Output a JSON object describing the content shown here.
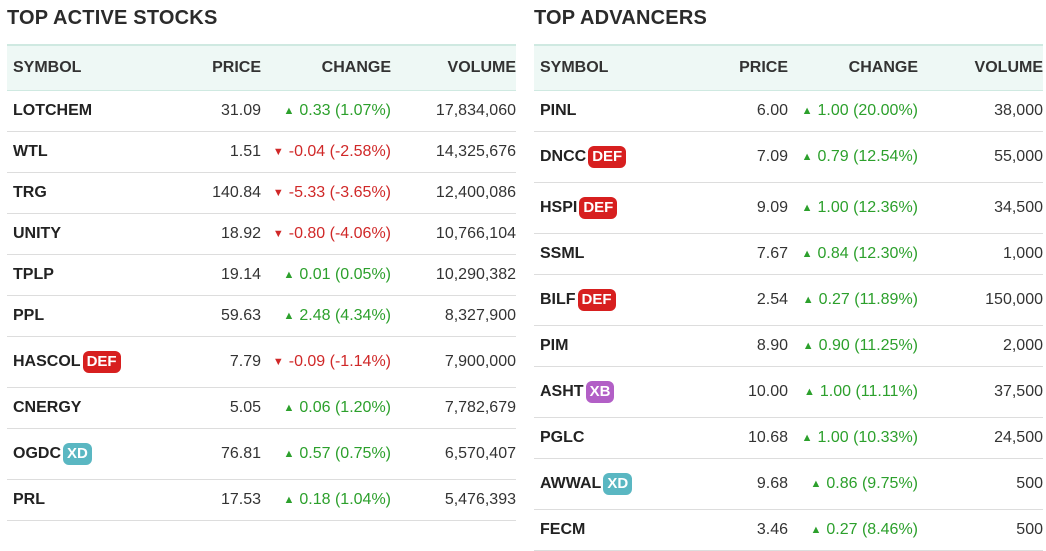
{
  "colors": {
    "up": "#2ca02c",
    "down": "#d02828",
    "header_bg": "#eef8f5",
    "badge_def": "#d71f1f",
    "badge_xd": "#5ab7c2",
    "badge_xb": "#b25fc6"
  },
  "left": {
    "title": "TOP ACTIVE STOCKS",
    "columns": {
      "symbol": "SYMBOL",
      "price": "PRICE",
      "change": "CHANGE",
      "volume": "VOLUME"
    },
    "rows": [
      {
        "symbol": "LOTCHEM",
        "badge": "",
        "price": "31.09",
        "change": "0.33 (1.07%)",
        "dir": "up",
        "volume": "17,834,060"
      },
      {
        "symbol": "WTL",
        "badge": "",
        "price": "1.51",
        "change": "-0.04 (-2.58%)",
        "dir": "down",
        "volume": "14,325,676"
      },
      {
        "symbol": "TRG",
        "badge": "",
        "price": "140.84",
        "change": "-5.33 (-3.65%)",
        "dir": "down",
        "volume": "12,400,086"
      },
      {
        "symbol": "UNITY",
        "badge": "",
        "price": "18.92",
        "change": "-0.80 (-4.06%)",
        "dir": "down",
        "volume": "10,766,104"
      },
      {
        "symbol": "TPLP",
        "badge": "",
        "price": "19.14",
        "change": "0.01 (0.05%)",
        "dir": "up",
        "volume": "10,290,382"
      },
      {
        "symbol": "PPL",
        "badge": "",
        "price": "59.63",
        "change": "2.48 (4.34%)",
        "dir": "up",
        "volume": "8,327,900"
      },
      {
        "symbol": "HASCOL",
        "badge": "DEF",
        "price": "7.79",
        "change": "-0.09 (-1.14%)",
        "dir": "down",
        "volume": "7,900,000"
      },
      {
        "symbol": "CNERGY",
        "badge": "",
        "price": "5.05",
        "change": "0.06 (1.20%)",
        "dir": "up",
        "volume": "7,782,679"
      },
      {
        "symbol": "OGDC",
        "badge": "XD",
        "price": "76.81",
        "change": "0.57 (0.75%)",
        "dir": "up",
        "volume": "6,570,407"
      },
      {
        "symbol": "PRL",
        "badge": "",
        "price": "17.53",
        "change": "0.18 (1.04%)",
        "dir": "up",
        "volume": "5,476,393"
      }
    ]
  },
  "right": {
    "title": "TOP ADVANCERS",
    "columns": {
      "symbol": "SYMBOL",
      "price": "PRICE",
      "change": "CHANGE",
      "volume": "VOLUME"
    },
    "rows": [
      {
        "symbol": "PINL",
        "badge": "",
        "price": "6.00",
        "change": "1.00 (20.00%)",
        "dir": "up",
        "volume": "38,000"
      },
      {
        "symbol": "DNCC",
        "badge": "DEF",
        "price": "7.09",
        "change": "0.79 (12.54%)",
        "dir": "up",
        "volume": "55,000"
      },
      {
        "symbol": "HSPI",
        "badge": "DEF",
        "price": "9.09",
        "change": "1.00 (12.36%)",
        "dir": "up",
        "volume": "34,500"
      },
      {
        "symbol": "SSML",
        "badge": "",
        "price": "7.67",
        "change": "0.84 (12.30%)",
        "dir": "up",
        "volume": "1,000"
      },
      {
        "symbol": "BILF",
        "badge": "DEF",
        "price": "2.54",
        "change": "0.27 (11.89%)",
        "dir": "up",
        "volume": "150,000"
      },
      {
        "symbol": "PIM",
        "badge": "",
        "price": "8.90",
        "change": "0.90 (11.25%)",
        "dir": "up",
        "volume": "2,000"
      },
      {
        "symbol": "ASHT",
        "badge": "XB",
        "price": "10.00",
        "change": "1.00 (11.11%)",
        "dir": "up",
        "volume": "37,500"
      },
      {
        "symbol": "PGLC",
        "badge": "",
        "price": "10.68",
        "change": "1.00 (10.33%)",
        "dir": "up",
        "volume": "24,500"
      },
      {
        "symbol": "AWWAL",
        "badge": "XD",
        "price": "9.68",
        "change": "0.86 (9.75%)",
        "dir": "up",
        "volume": "500"
      },
      {
        "symbol": "FECM",
        "badge": "",
        "price": "3.46",
        "change": "0.27 (8.46%)",
        "dir": "up",
        "volume": "500"
      }
    ]
  }
}
